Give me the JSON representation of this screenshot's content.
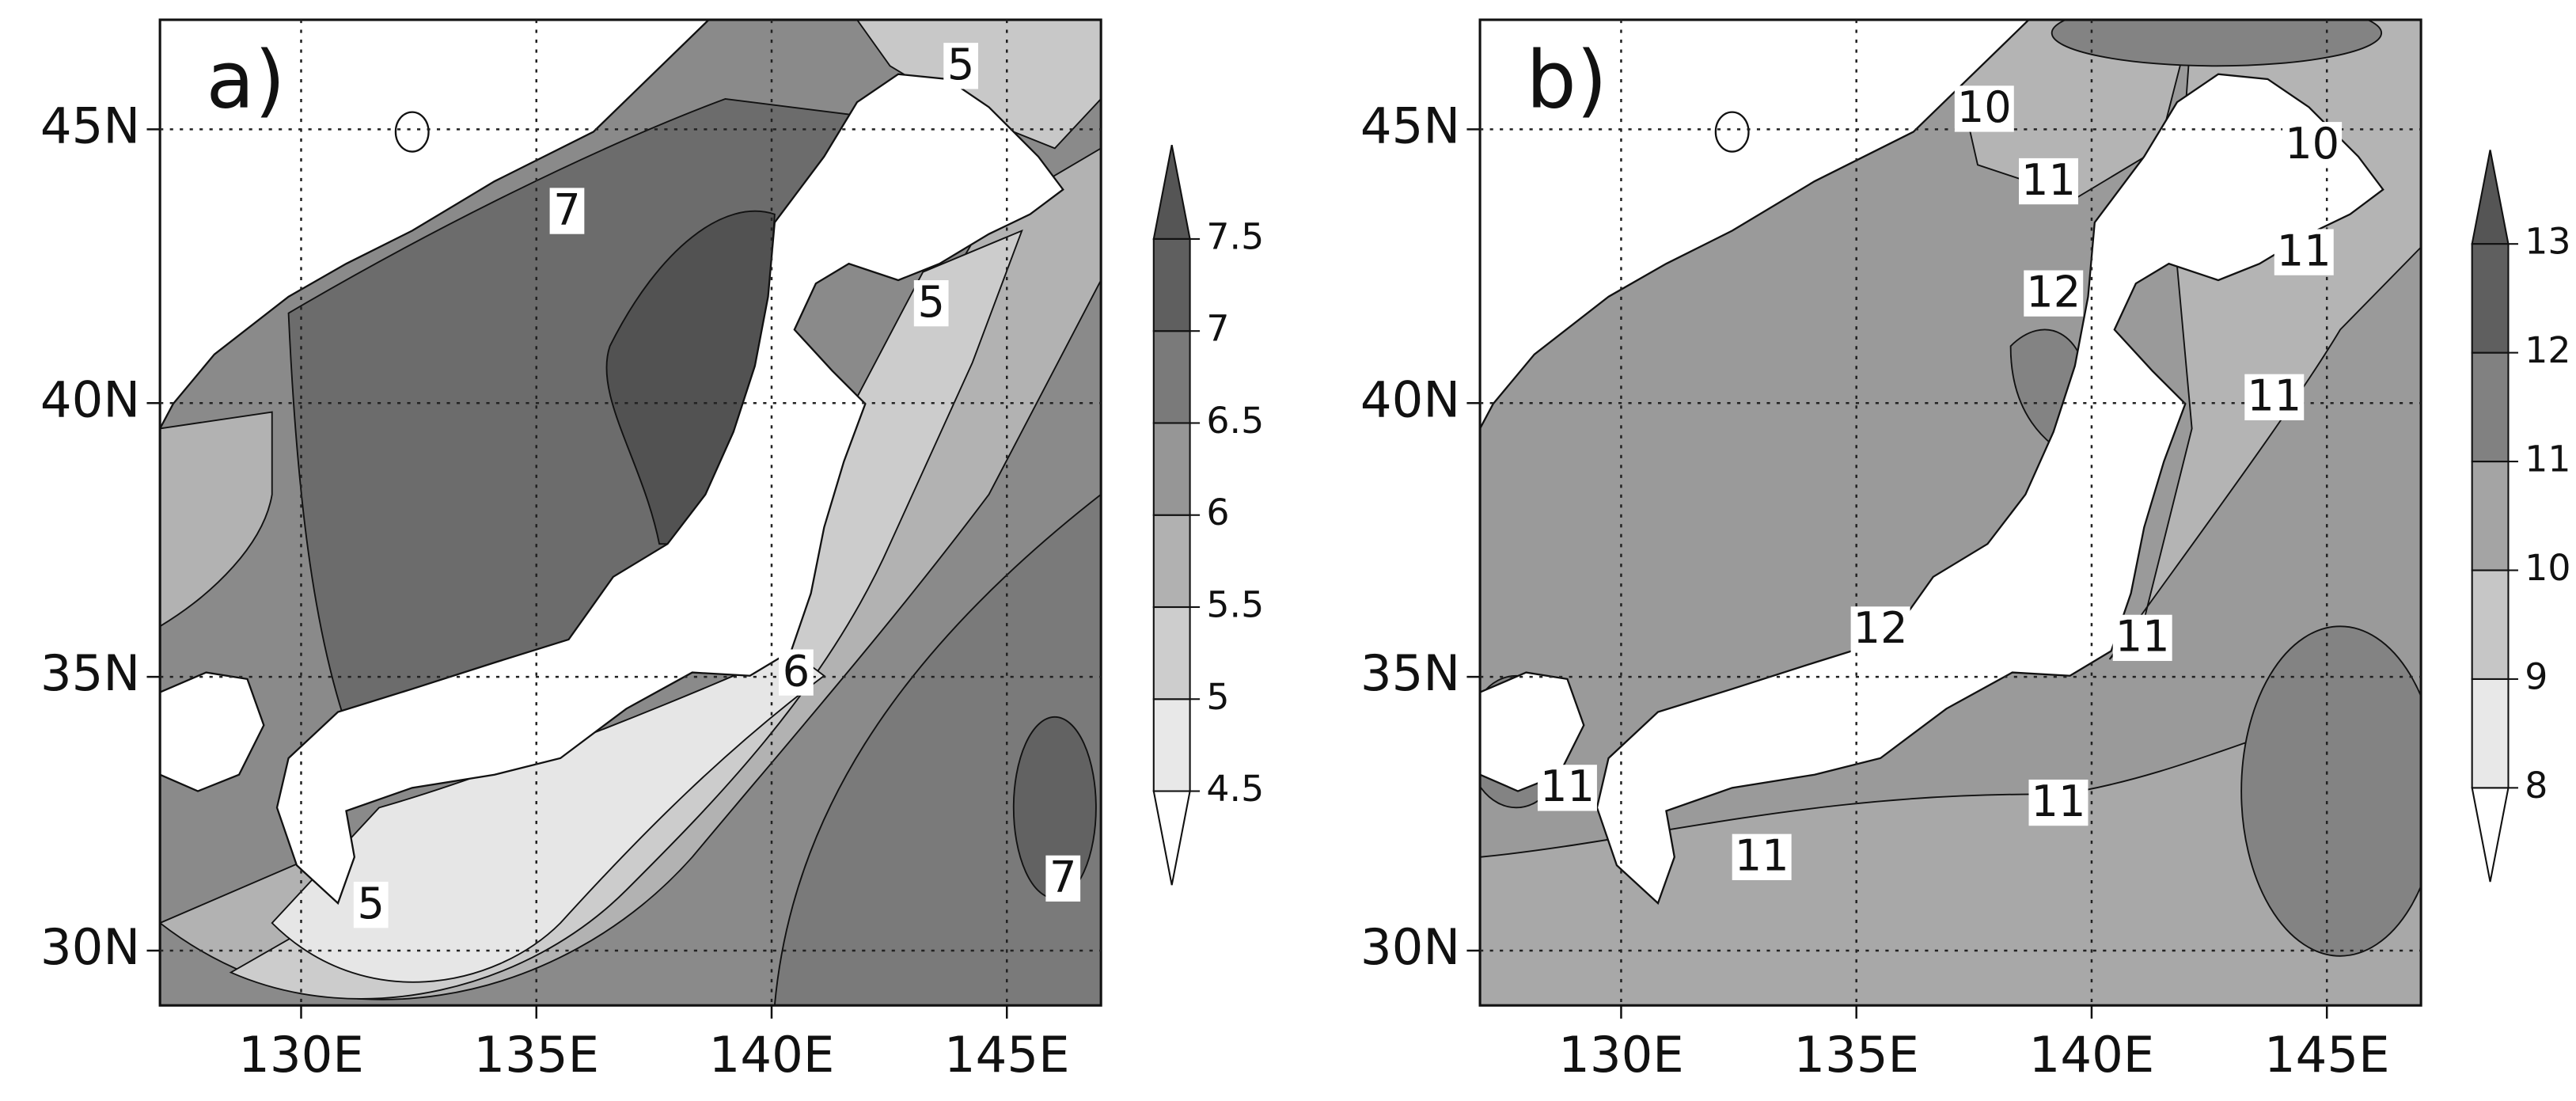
{
  "panels": [
    {
      "label": "a)",
      "lon_range": [
        127,
        147
      ],
      "lat_range": [
        29,
        47
      ],
      "lat_ticks": [
        {
          "value": 45,
          "label": "45N"
        },
        {
          "value": 40,
          "label": "40N"
        },
        {
          "value": 35,
          "label": "35N"
        },
        {
          "value": 30,
          "label": "30N"
        }
      ],
      "lon_ticks": [
        {
          "value": 130,
          "label": "130E"
        },
        {
          "value": 135,
          "label": "135E"
        },
        {
          "value": 140,
          "label": "140E"
        },
        {
          "value": 145,
          "label": "145E"
        }
      ],
      "colorbar": {
        "levels": [
          4.5,
          5,
          5.5,
          6,
          6.5,
          7,
          7.5
        ]
      },
      "contour_labels": [
        7,
        5,
        5,
        6,
        5,
        7
      ]
    },
    {
      "label": "b)",
      "lon_range": [
        127,
        147
      ],
      "lat_range": [
        29,
        47
      ],
      "lat_ticks": [
        {
          "value": 45,
          "label": "45N"
        },
        {
          "value": 40,
          "label": "40N"
        },
        {
          "value": 35,
          "label": "35N"
        },
        {
          "value": 30,
          "label": "30N"
        }
      ],
      "lon_ticks": [
        {
          "value": 130,
          "label": "130E"
        },
        {
          "value": 135,
          "label": "135E"
        },
        {
          "value": 140,
          "label": "140E"
        },
        {
          "value": 145,
          "label": "145E"
        }
      ],
      "colorbar": {
        "levels": [
          8,
          9,
          10,
          11,
          12,
          13
        ]
      },
      "contour_labels": [
        10,
        11,
        10,
        11,
        12,
        11,
        12,
        11,
        11,
        11,
        11
      ]
    }
  ]
}
